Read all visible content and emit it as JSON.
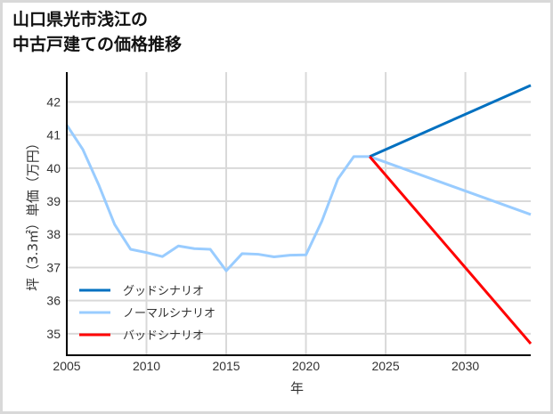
{
  "title_line1": "山口県光市浅江の",
  "title_line2": "中古戸建ての価格推移",
  "chart_data": {
    "type": "line",
    "title": "山口県光市浅江の中古戸建ての価格推移",
    "xlabel": "年",
    "ylabel": "坪（3.3㎡）単価（万円）",
    "xlim": [
      2005,
      2034.1
    ],
    "ylim": [
      34.35,
      42.9
    ],
    "xticks": [
      2005,
      2010,
      2015,
      2020,
      2025,
      2030
    ],
    "yticks": [
      35,
      36,
      37,
      38,
      39,
      40,
      41,
      42
    ],
    "grid": true,
    "legend_position": "lower left",
    "series": [
      {
        "name": "グッドシナリオ",
        "color": "#0070c0",
        "x": [
          2024,
          2034.1
        ],
        "y": [
          40.35,
          42.5
        ]
      },
      {
        "name": "ノーマルシナリオ",
        "color": "#99ccff",
        "x": [
          2005,
          2006,
          2007,
          2008,
          2009,
          2010,
          2011,
          2012,
          2013,
          2014,
          2015,
          2016,
          2017,
          2018,
          2019,
          2020,
          2021,
          2022,
          2023,
          2024,
          2034.1
        ],
        "y": [
          41.3,
          40.57,
          39.5,
          38.3,
          37.55,
          37.45,
          37.33,
          37.65,
          37.57,
          37.55,
          36.9,
          37.42,
          37.4,
          37.32,
          37.37,
          37.38,
          38.4,
          39.67,
          40.35,
          40.35,
          38.6
        ]
      },
      {
        "name": "バッドシナリオ",
        "color": "#ff0000",
        "x": [
          2024,
          2034.1
        ],
        "y": [
          40.35,
          34.7
        ]
      }
    ]
  }
}
